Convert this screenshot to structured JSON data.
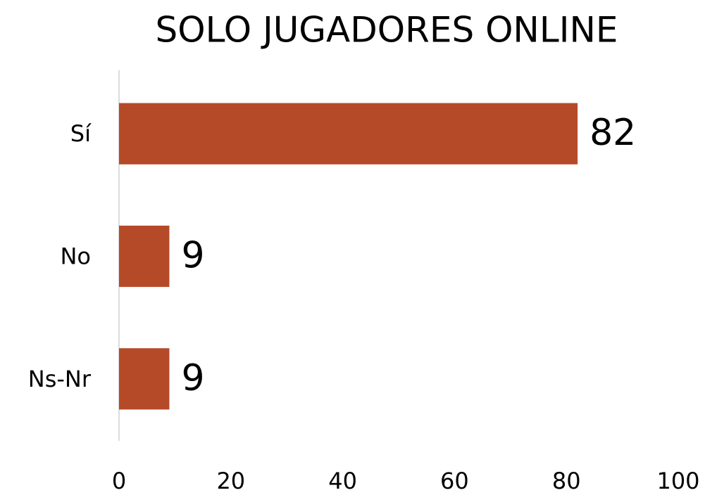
{
  "chart_data": {
    "type": "bar",
    "orientation": "horizontal",
    "title": "SOLO JUGADORES ONLINE",
    "categories": [
      "Sí",
      "No",
      "Ns-Nr"
    ],
    "values": [
      82,
      9,
      9
    ],
    "color": "#b54a28",
    "xlim": [
      0,
      100
    ],
    "xticks": [
      0,
      20,
      40,
      60,
      80,
      100
    ],
    "grid": false
  }
}
